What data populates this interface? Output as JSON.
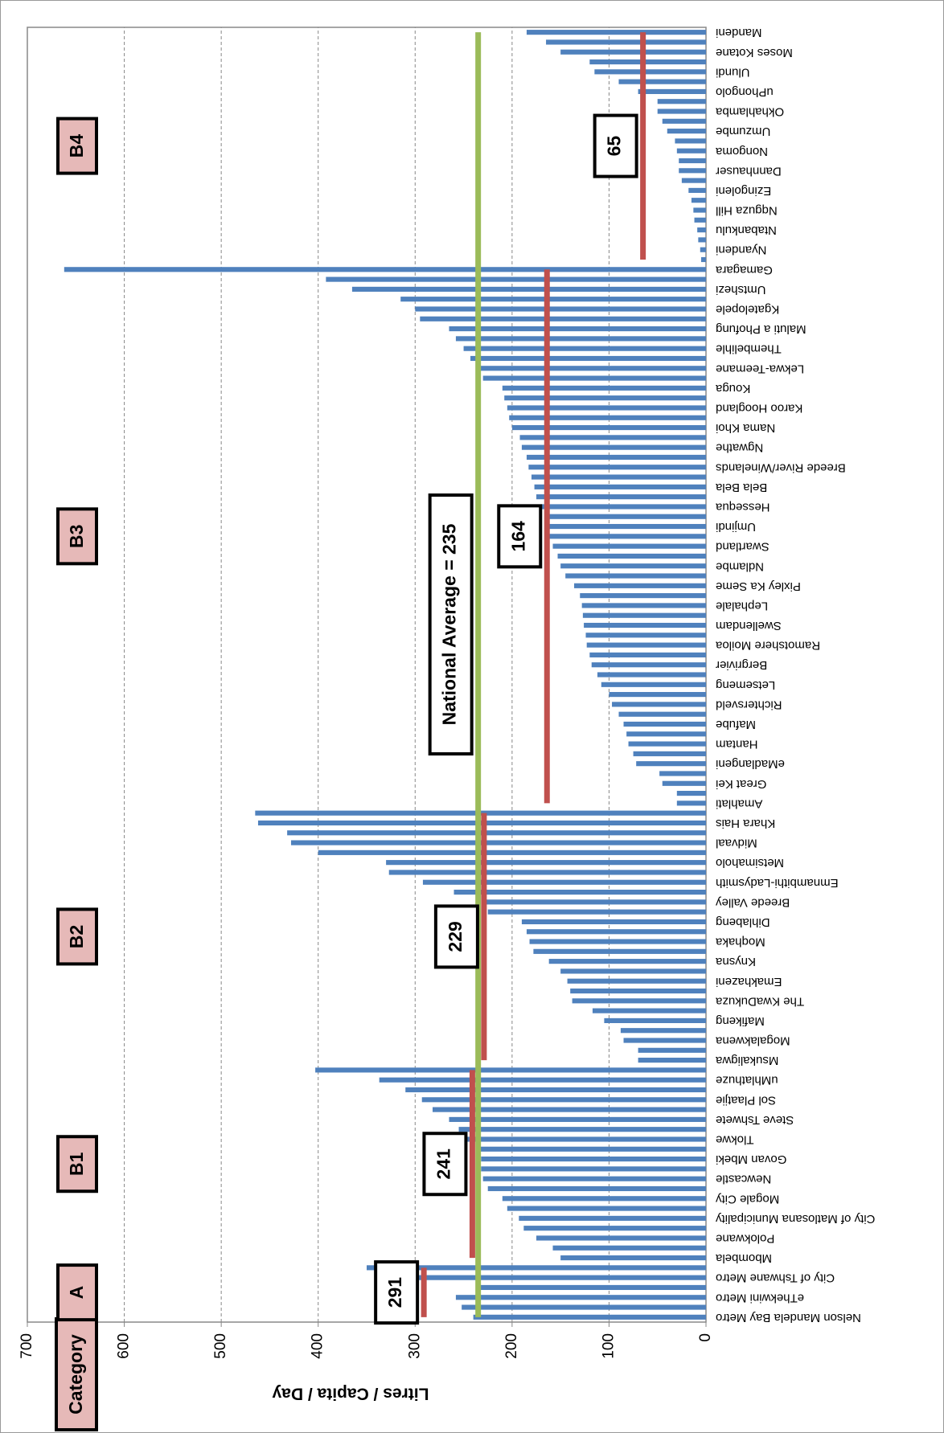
{
  "chart_data": {
    "type": "bar",
    "y_label": "Litres / Capita / Day",
    "category_header": "Category",
    "categories": [
      "Nelson Mandela Bay Metro",
      null,
      "eThekwini Metro",
      null,
      "City of Tshwane Metro",
      null,
      "Mbombela",
      null,
      "Polokwane",
      null,
      "City of Matlosana Municipality",
      null,
      "Mogale City",
      null,
      "Newcastle",
      null,
      "Govan Mbeki",
      null,
      "Tlokwe",
      null,
      "Steve Tshwete",
      null,
      "Sol Plaatjie",
      null,
      "uMhlathuze",
      null,
      "Msukaligwa",
      null,
      "Mogalakwena",
      null,
      "Mafikeng",
      null,
      "The KwaDukuza",
      null,
      "Emakhazeni",
      null,
      "Knysna",
      null,
      "Moqhaka",
      null,
      "Dihlabeng",
      null,
      "Breede Valley",
      null,
      "Emnambithi-Ladysmith",
      null,
      "Metsimaholo",
      null,
      "Midvaal",
      null,
      "Khara Hais",
      null,
      "Amahlati",
      null,
      "Great Kei",
      null,
      "eMadlangeni",
      null,
      "Hantam",
      null,
      "Mafube",
      null,
      "Richtersveld",
      null,
      "Letsemeng",
      null,
      "Bergrivier",
      null,
      "Ramotshere Moiloa",
      null,
      "Swellendam",
      null,
      "Lephalale",
      null,
      "Pixley Ka Seme",
      null,
      "Ndlambe",
      null,
      "Swartland",
      null,
      "Umjindi",
      null,
      "Hessequa",
      null,
      "Bela Bela",
      null,
      "Breede River/Winelands",
      null,
      "Ngwathe",
      null,
      "Nama Khoi",
      null,
      "Karoo Hoogland",
      null,
      "Kouga",
      null,
      "Lekwa-Teemane",
      null,
      "Thembelihle",
      null,
      "Maluti a Phofung",
      null,
      "Kgatelopele",
      null,
      "Umtshezi",
      null,
      "Gamagara",
      null,
      "Nyandeni",
      null,
      "Ntabankulu",
      null,
      "Nqguza Hill",
      null,
      "Ezingoleni",
      null,
      "Dannhauser",
      null,
      "Nongoma",
      null,
      "Umzumbe",
      null,
      "Okhahlamba",
      null,
      "uPhongolo",
      null,
      "Ulundi",
      null,
      "Moses Kotane",
      null,
      "Mandeni"
    ],
    "values": [
      240,
      252,
      258,
      235,
      308,
      350,
      150,
      158,
      175,
      188,
      193,
      205,
      210,
      225,
      230,
      232,
      232,
      235,
      250,
      255,
      265,
      282,
      293,
      310,
      337,
      403,
      70,
      70,
      85,
      88,
      105,
      117,
      138,
      140,
      143,
      150,
      162,
      178,
      182,
      185,
      190,
      225,
      228,
      260,
      292,
      327,
      330,
      400,
      428,
      432,
      462,
      465,
      30,
      30,
      45,
      48,
      72,
      75,
      80,
      82,
      85,
      90,
      97,
      100,
      108,
      112,
      118,
      120,
      123,
      124,
      126,
      127,
      128,
      130,
      136,
      145,
      150,
      153,
      158,
      162,
      163,
      165,
      170,
      175,
      177,
      180,
      183,
      185,
      190,
      192,
      200,
      203,
      205,
      208,
      210,
      230,
      235,
      243,
      250,
      258,
      265,
      295,
      300,
      315,
      365,
      392,
      662,
      5,
      6,
      8,
      9,
      12,
      13,
      15,
      18,
      25,
      28,
      28,
      30,
      32,
      40,
      45,
      50,
      50,
      70,
      90,
      115,
      120,
      150,
      165,
      185
    ],
    "color": "#4f81bd",
    "ylim": [
      0,
      700
    ],
    "yticks": [
      0,
      100,
      200,
      300,
      400,
      500,
      600,
      700
    ],
    "grid": true,
    "average_color": "#c0504d",
    "groups": [
      {
        "name": "A",
        "average": 291,
        "bars": 6
      },
      {
        "name": "B1",
        "average": 241,
        "bars": 20
      },
      {
        "name": "B2",
        "average": 229,
        "bars": 26
      },
      {
        "name": "B3",
        "average": 164,
        "bars": 55
      },
      {
        "name": "B4",
        "average": 65,
        "bars": 24
      }
    ],
    "national_average": {
      "label": "National Average = 235",
      "value": 235,
      "color": "#9bbb59"
    }
  }
}
